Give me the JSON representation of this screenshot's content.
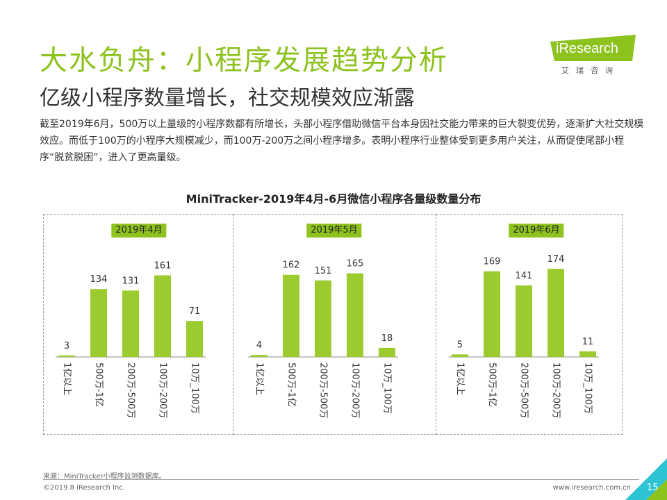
{
  "header": {
    "title": "大水负舟：小程序发展趋势分析",
    "subtitle": "亿级小程序数量增长，社交规模效应渐露",
    "description": "截至2019年6月，500万以上量级的小程序数都有所增长，头部小程序借助微信平台本身因社交能力带来的巨大裂变优势，逐渐扩大社交规模效应。而低于100万的小程序大规模减少，而100万-200万之间小程序增多。表明小程序行业整体受到更多用户关注，从而促使尾部小程序“脱贫脱困”，进入了更高量级。"
  },
  "logo": {
    "name": "iResearch",
    "sub": "艾瑞咨询"
  },
  "colors": {
    "accent": "#8dc21f",
    "bar": "#9ccb30",
    "corner": "#2ec4d6"
  },
  "chart_data": {
    "type": "bar",
    "title": "MiniTracker-2019年4月-6月微信小程序各量级数量分布",
    "categories": [
      "1亿以上",
      "500万-1亿",
      "200万-500万",
      "100万-200万",
      "10万_100万"
    ],
    "series": [
      {
        "name": "2019年4月",
        "values": [
          3,
          134,
          131,
          161,
          71
        ]
      },
      {
        "name": "2019年5月",
        "values": [
          4,
          162,
          151,
          165,
          18
        ]
      },
      {
        "name": "2019年6月",
        "values": [
          5,
          169,
          141,
          174,
          11
        ]
      }
    ],
    "ylim": [
      0,
      200
    ]
  },
  "footer": {
    "source": "来源：MiniTracker小程序监测数据库。",
    "copyright": "©2019.8 iResearch Inc.",
    "website": "www.iresearch.com.cn",
    "page": "15"
  }
}
